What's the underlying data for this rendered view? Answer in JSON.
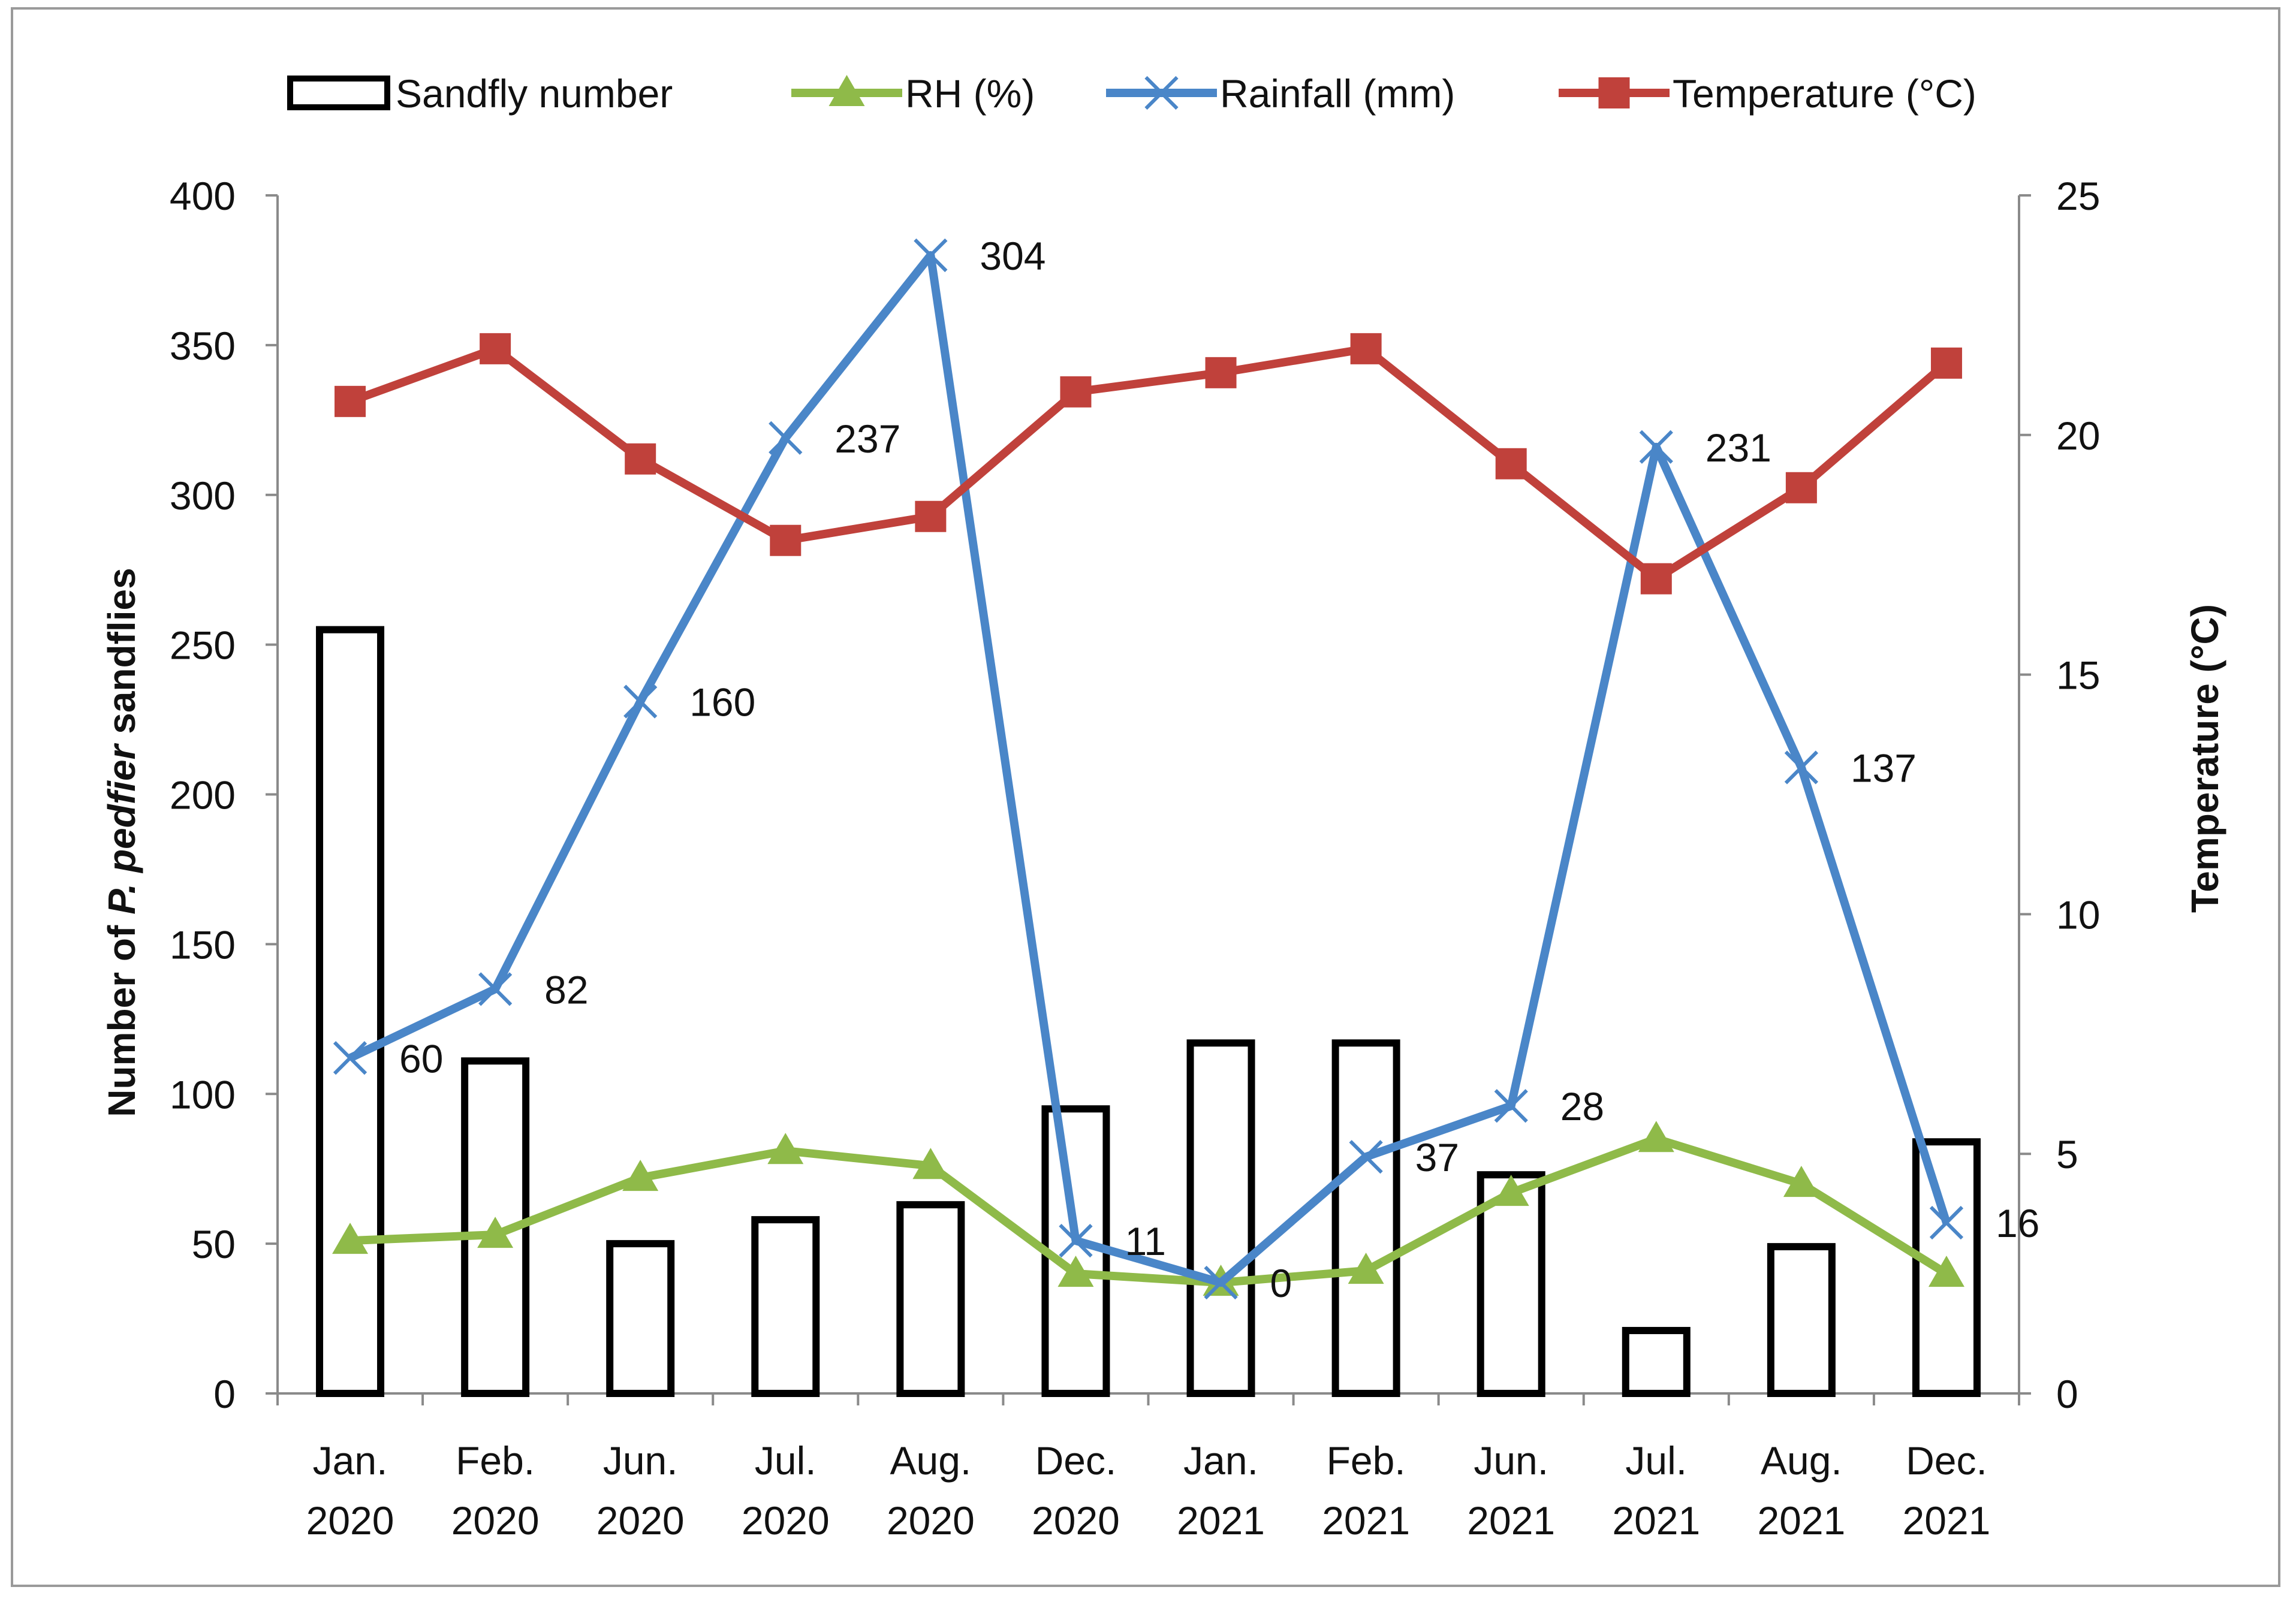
{
  "chart_data": {
    "type": "bar",
    "categories": [
      [
        "Jan.",
        "2020"
      ],
      [
        "Feb.",
        "2020"
      ],
      [
        "Jun.",
        "2020"
      ],
      [
        "Jul.",
        "2020"
      ],
      [
        "Aug.",
        "2020"
      ],
      [
        "Dec.",
        "2020"
      ],
      [
        "Jan.",
        "2021"
      ],
      [
        "Feb.",
        "2021"
      ],
      [
        "Jun.",
        "2021"
      ],
      [
        "Jul.",
        "2021"
      ],
      [
        "Aug.",
        "2021"
      ],
      [
        "Dec.",
        "2021"
      ]
    ],
    "y_left": {
      "label_prefix": "Number of ",
      "label_italic": "P. pedfier",
      "label_suffix": " sandflies",
      "range": [
        0,
        400
      ],
      "ticks": [
        0,
        50,
        100,
        150,
        200,
        250,
        300,
        350,
        400
      ]
    },
    "y_right": {
      "label": "Temperature (°C)",
      "range": [
        0,
        25
      ],
      "ticks": [
        0,
        5,
        10,
        15,
        20,
        25
      ]
    },
    "grid": false,
    "legend_position": "top",
    "series": [
      {
        "name": "Sandfly number",
        "kind": "bar",
        "axis": "left",
        "color": "#000000",
        "fill": "#ffffff",
        "values": [
          255,
          111,
          50,
          58,
          63,
          95,
          117,
          117,
          73,
          21,
          49,
          84
        ]
      },
      {
        "name": "RH (%)",
        "kind": "line",
        "axis": "left",
        "marker": "triangle",
        "color": "#8fba49",
        "values": [
          51,
          53,
          72,
          81,
          76,
          40,
          37,
          41,
          67,
          85,
          70,
          40
        ]
      },
      {
        "name": "Rainfall (mm)",
        "kind": "line",
        "axis": "left",
        "marker": "x",
        "color": "#4a86c8",
        "values": [
          112,
          135,
          231,
          319,
          380,
          51,
          37,
          79,
          96,
          316,
          209,
          57
        ],
        "data_labels": [
          "60",
          "82",
          "160",
          "237",
          "304",
          "11",
          "0",
          "37",
          "28",
          "231",
          "137",
          "16"
        ]
      },
      {
        "name": "Temperature (°C)",
        "kind": "line",
        "axis": "right",
        "marker": "square",
        "color": "#c0413b",
        "values": [
          20.7,
          21.8,
          19.5,
          17.8,
          18.3,
          20.9,
          21.3,
          21.8,
          19.4,
          17.0,
          18.9,
          21.5
        ]
      }
    ]
  }
}
